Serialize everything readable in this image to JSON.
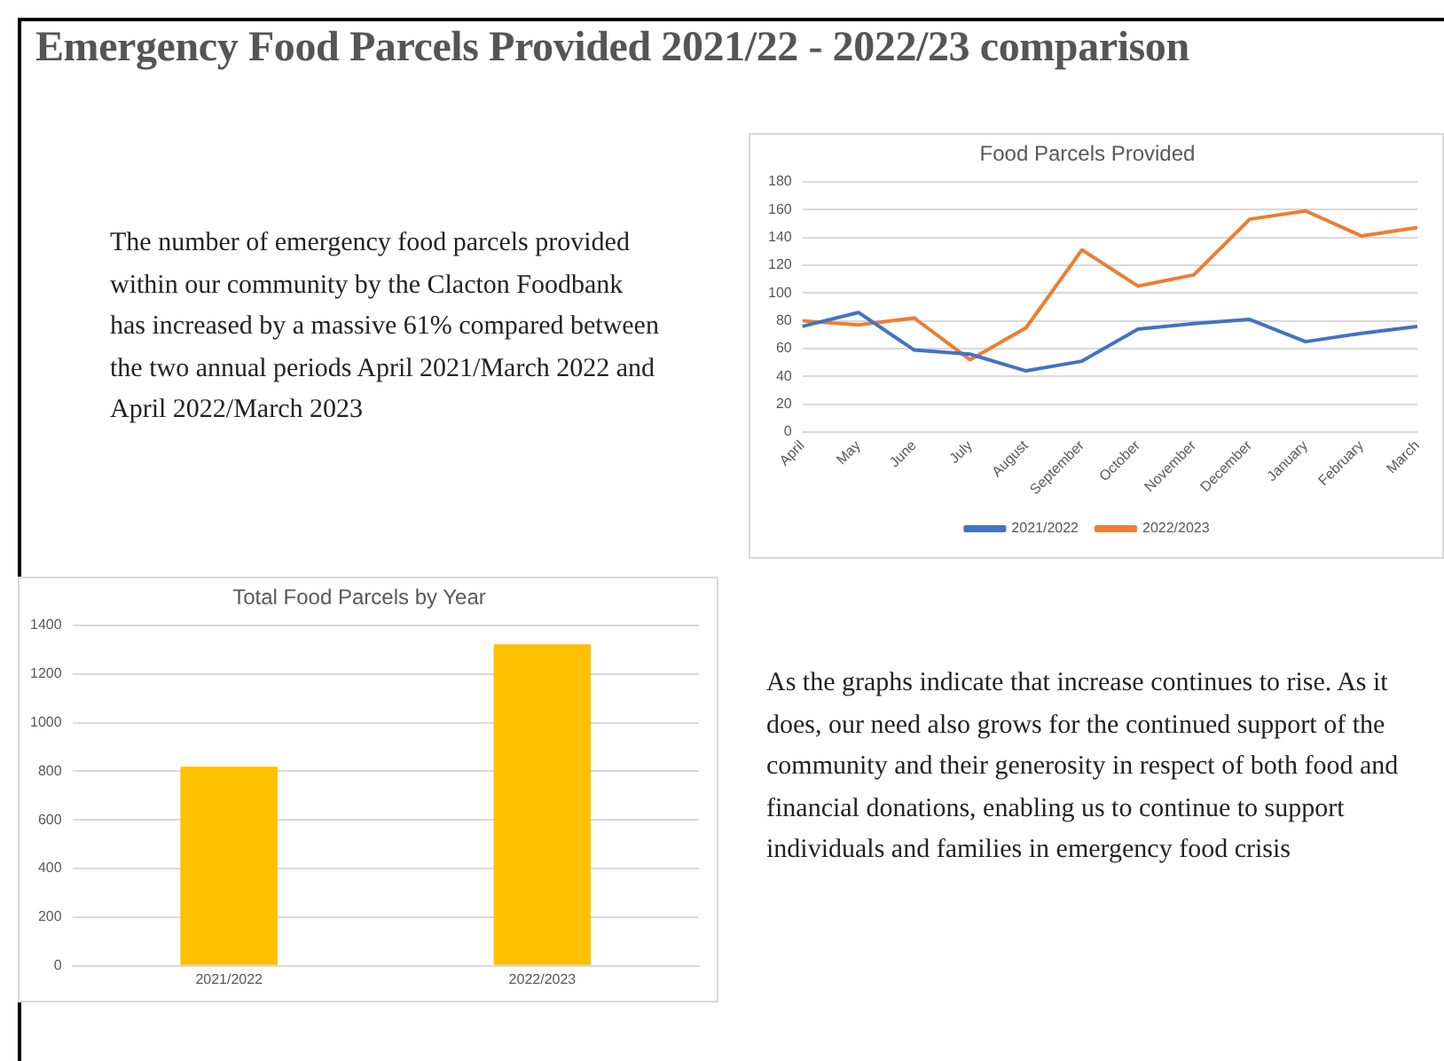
{
  "chart_data": [
    {
      "type": "line",
      "title": "Food Parcels Provided",
      "categories": [
        "April",
        "May",
        "June",
        "July",
        "August",
        "September",
        "October",
        "November",
        "December",
        "January",
        "February",
        "March"
      ],
      "series": [
        {
          "name": "2021/2022",
          "color": "#4472c4",
          "values": [
            76,
            86,
            59,
            56,
            44,
            51,
            74,
            78,
            81,
            65,
            71,
            76
          ]
        },
        {
          "name": "2022/2023",
          "color": "#ed7d31",
          "values": [
            80,
            77,
            82,
            52,
            75,
            131,
            105,
            113,
            153,
            159,
            141,
            147
          ]
        }
      ],
      "ylim": [
        0,
        180
      ],
      "yticks": [
        0,
        20,
        40,
        60,
        80,
        100,
        120,
        140,
        160,
        180
      ],
      "grid": "y",
      "legend": "bottom",
      "marker": "none"
    },
    {
      "type": "bar",
      "title": "Total Food Parcels by Year",
      "categories": [
        "2021/2022",
        "2022/2023"
      ],
      "values": [
        819,
        1322
      ],
      "color": "#ffc000",
      "ylim": [
        0,
        1400
      ],
      "yticks": [
        0,
        200,
        400,
        600,
        800,
        1000,
        1200,
        1400
      ],
      "grid": "y",
      "legend": false
    },
    {
      "type": "other",
      "title": "Emergency Food Parcels Provided 2021/22 - 2022/23 comparison",
      "annotations": [
        "The number of emergency food parcels provided within our community by the Clacton Foodbank has increased by a massive 61% compared between the two annual periods April 2021/March 2022 and April 2022/March 2023",
        "As the graphs indicate that increase continues to rise. As it does, our need also grows for the continued support of the community and their generosity in respect of both food and financial donations, enabling us to continue to support individuals and families in emergency food crisis"
      ]
    }
  ]
}
